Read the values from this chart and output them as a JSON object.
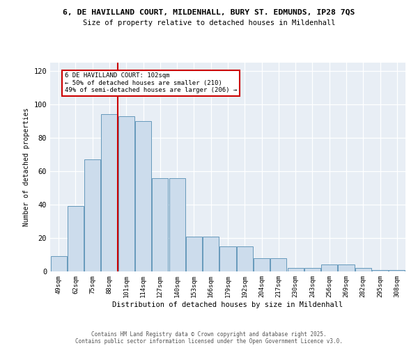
{
  "title_line1": "6, DE HAVILLAND COURT, MILDENHALL, BURY ST. EDMUNDS, IP28 7QS",
  "title_line2": "Size of property relative to detached houses in Mildenhall",
  "xlabel": "Distribution of detached houses by size in Mildenhall",
  "ylabel": "Number of detached properties",
  "categories": [
    "49sqm",
    "62sqm",
    "75sqm",
    "88sqm",
    "101sqm",
    "114sqm",
    "127sqm",
    "140sqm",
    "153sqm",
    "166sqm",
    "179sqm",
    "192sqm",
    "204sqm",
    "217sqm",
    "230sqm",
    "243sqm",
    "256sqm",
    "269sqm",
    "282sqm",
    "295sqm",
    "308sqm"
  ],
  "values": [
    9,
    39,
    67,
    94,
    93,
    90,
    56,
    56,
    21,
    21,
    15,
    15,
    8,
    8,
    2,
    2,
    4,
    4,
    2,
    1,
    1
  ],
  "bar_color": "#ccdcec",
  "bar_edge_color": "#6699bb",
  "reference_line_x": 3.5,
  "reference_line_color": "#cc0000",
  "annotation_text": "6 DE HAVILLAND COURT: 102sqm\n← 50% of detached houses are smaller (210)\n49% of semi-detached houses are larger (206) →",
  "annotation_box_edgecolor": "#cc0000",
  "ylim_max": 125,
  "yticks": [
    0,
    20,
    40,
    60,
    80,
    100,
    120
  ],
  "chart_bg_color": "#e8eef5",
  "footer_line1": "Contains HM Land Registry data © Crown copyright and database right 2025.",
  "footer_line2": "Contains public sector information licensed under the Open Government Licence v3.0."
}
